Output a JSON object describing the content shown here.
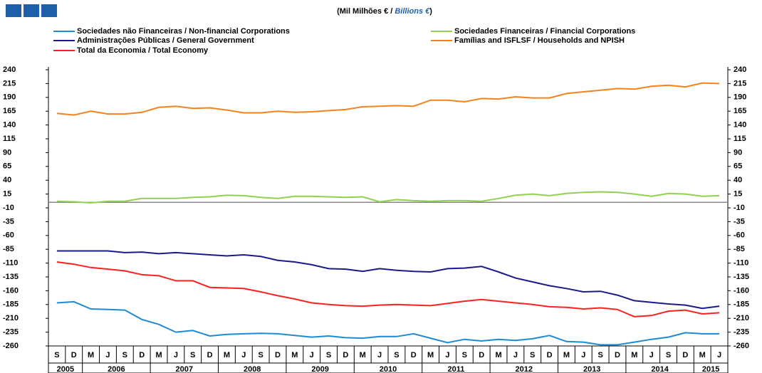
{
  "chart_data": {
    "type": "line",
    "title": [
      "(Mil Milhões € / ",
      "Billions €",
      ")"
    ],
    "categories": [
      "S",
      "D",
      "M",
      "J",
      "S",
      "D",
      "M",
      "J",
      "S",
      "D",
      "M",
      "J",
      "S",
      "D",
      "M",
      "J",
      "S",
      "D",
      "M",
      "J",
      "S",
      "D",
      "M",
      "J",
      "S",
      "D",
      "M",
      "J",
      "S",
      "D",
      "M",
      "J",
      "S",
      "D",
      "M",
      "J",
      "S",
      "D",
      "M",
      "J"
    ],
    "years": [
      "2005",
      "2006",
      "2007",
      "2008",
      "2009",
      "2010",
      "2011",
      "2012",
      "2013",
      "2014",
      "2015"
    ],
    "series": [
      {
        "name": "Sociedades não Financeiras / Non-financial Corporations",
        "color": "#1f8ad4",
        "values": [
          -182,
          -180,
          -193,
          -194,
          -195,
          -212,
          -221,
          -235,
          -232,
          -242,
          -239,
          -238,
          -237,
          -238,
          -241,
          -244,
          -242,
          -245,
          -246,
          -243,
          -243,
          -238,
          -246,
          -254,
          -248,
          -251,
          -248,
          -250,
          -247,
          -241,
          -252,
          -253,
          -258,
          -258,
          -253,
          -248,
          -244,
          -236,
          -238,
          -238
        ]
      },
      {
        "name": "Sociedades Financeiras / Financial Corporations",
        "color": "#92d050",
        "values": [
          2,
          1,
          -1,
          2,
          2,
          7,
          7,
          7,
          9,
          10,
          13,
          12,
          9,
          7,
          11,
          11,
          10,
          9,
          10,
          1,
          5,
          3,
          2,
          3,
          3,
          2,
          7,
          13,
          15,
          12,
          16,
          18,
          19,
          18,
          15,
          11,
          16,
          15,
          11,
          12
        ]
      },
      {
        "name": "Administrações Públicas / General Government",
        "color": "#1a1a8c",
        "values": [
          -88,
          -88,
          -88,
          -88,
          -91,
          -90,
          -93,
          -91,
          -93,
          -95,
          -97,
          -95,
          -98,
          -105,
          -108,
          -113,
          -120,
          -121,
          -125,
          -120,
          -123,
          -125,
          -126,
          -120,
          -119,
          -116,
          -126,
          -137,
          -144,
          -151,
          -156,
          -162,
          -161,
          -168,
          -178,
          -181,
          -184,
          -186,
          -192,
          -188
        ]
      },
      {
        "name": "Famílias and ISFLSF / Households and NPISH",
        "color": "#f58220",
        "values": [
          161,
          158,
          165,
          160,
          160,
          163,
          172,
          174,
          170,
          171,
          167,
          162,
          162,
          165,
          163,
          164,
          166,
          168,
          173,
          174,
          175,
          174,
          185,
          185,
          182,
          188,
          187,
          191,
          189,
          189,
          197,
          200,
          203,
          206,
          205,
          210,
          212,
          209,
          216,
          215
        ]
      },
      {
        "name": "Total da Economia / Total Economy",
        "color": "#ff2020",
        "values": [
          -108,
          -112,
          -118,
          -121,
          -124,
          -131,
          -133,
          -142,
          -142,
          -154,
          -155,
          -156,
          -162,
          -169,
          -175,
          -182,
          -185,
          -187,
          -188,
          -186,
          -185,
          -186,
          -187,
          -183,
          -179,
          -176,
          -179,
          -182,
          -185,
          -189,
          -190,
          -193,
          -191,
          -194,
          -207,
          -205,
          -197,
          -195,
          -202,
          -200
        ]
      }
    ],
    "ylim": [
      -260,
      240
    ],
    "yticks": [
      240,
      215,
      190,
      165,
      140,
      115,
      90,
      65,
      40,
      15,
      -10,
      -35,
      -60,
      -85,
      -110,
      -135,
      -160,
      -185,
      -210,
      -235,
      -260
    ],
    "zero_line": true
  }
}
